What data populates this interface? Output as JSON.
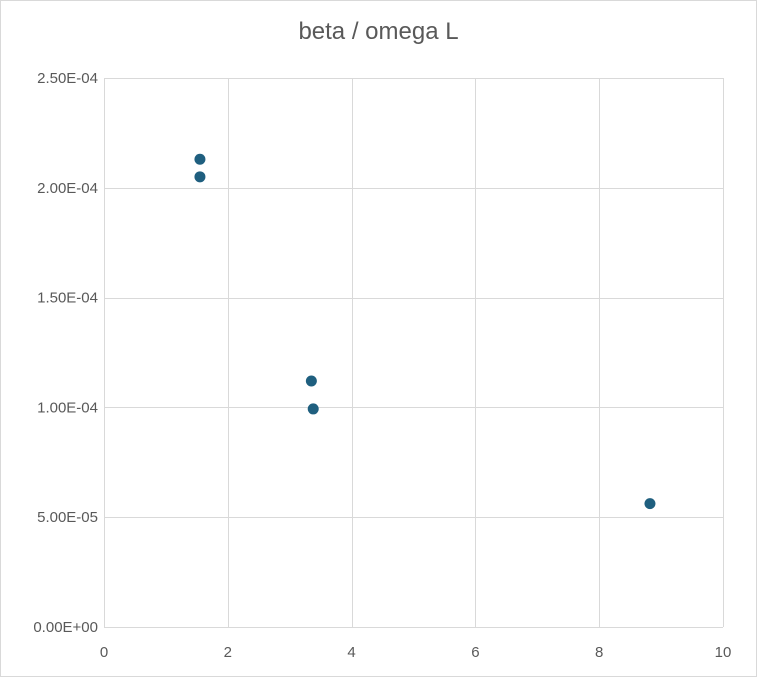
{
  "chart_data": {
    "type": "scatter",
    "title": "beta / omega L",
    "xlabel": "",
    "ylabel": "",
    "xlim": [
      0,
      10
    ],
    "ylim": [
      0,
      0.00025
    ],
    "x_ticks": [
      0,
      2,
      4,
      6,
      8,
      10
    ],
    "x_tick_labels": [
      "0",
      "2",
      "4",
      "6",
      "8",
      "10"
    ],
    "y_ticks": [
      0,
      5e-05,
      0.0001,
      0.00015,
      0.0002,
      0.00025
    ],
    "y_tick_labels": [
      "0.00E+00",
      "5.00E-05",
      "1.00E-04",
      "1.50E-04",
      "2.00E-04",
      "2.50E-04"
    ],
    "grid": true,
    "legend": "none",
    "series": [
      {
        "color": "#1f5f7f",
        "points": [
          {
            "x": 1.55,
            "y": 0.000213
          },
          {
            "x": 1.55,
            "y": 0.000205
          },
          {
            "x": 3.35,
            "y": 0.000112
          },
          {
            "x": 3.38,
            "y": 9.93e-05
          },
          {
            "x": 8.82,
            "y": 5.62e-05
          }
        ]
      }
    ]
  },
  "colors": {
    "grid": "#d9d9d9",
    "marker": "#1f5f7f",
    "text": "#595959"
  }
}
